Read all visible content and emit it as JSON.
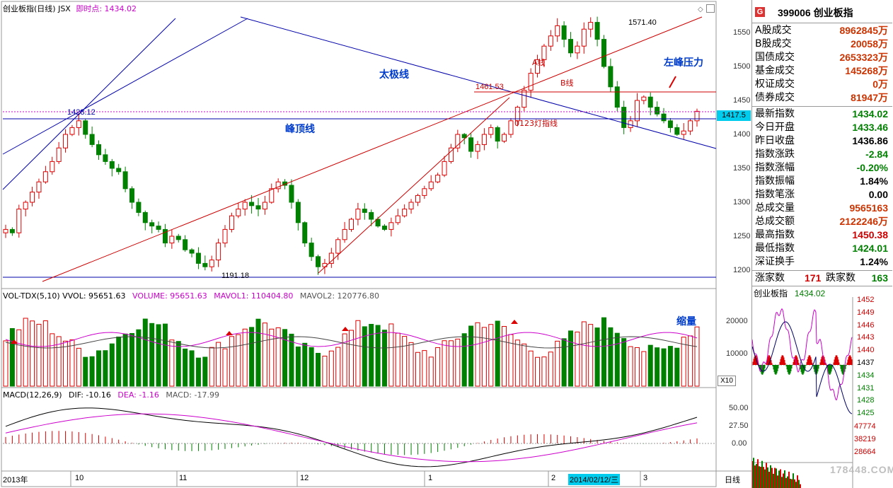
{
  "header": {
    "title": "创业板指(日线) JSX",
    "realtime_label": "即时点: 1434.02"
  },
  "colors": {
    "up": "#dd0000",
    "down": "#008000",
    "trend_blue": "#0000aa",
    "trend_red": "#cc0000",
    "magenta": "#cc00cc",
    "annot_blue": "#0033cc"
  },
  "price_chart": {
    "y_ticks": [
      "1550",
      "1500",
      "1450",
      "1400",
      "1350",
      "1300",
      "1250",
      "1200"
    ],
    "current_price_tag": "1417.5",
    "labels": {
      "high": "1571.40",
      "low": "1191.18",
      "prev_high": "1428.12",
      "cross": "1461.53",
      "a_line": "A线",
      "b_line": "B线",
      "finger": "0123灯指线"
    },
    "annotations": {
      "taiji": "太极线",
      "fengding": "峰顶线",
      "zuofeng": "左峰压力",
      "suoliang": "缩量"
    }
  },
  "volume": {
    "header": "VOL-TDX(5,10)  VVOL: 95651.63",
    "volume": "VOLUME: 95651.63",
    "mavol1": "MAVOL1: 110404.80",
    "mavol2": "MAVOL2: 120776.80",
    "y_ticks": [
      "20000",
      "10000"
    ],
    "unit": "X10"
  },
  "macd": {
    "header": "MACD(12,26,9)",
    "dif": "DIF: -10.16",
    "dea": "DEA: -1.16",
    "macd": "MACD: -17.99",
    "y_ticks": [
      "50.00",
      "27.50",
      "0.00"
    ]
  },
  "x_axis": {
    "labels": [
      "2013年",
      "10",
      "11",
      "12",
      "1",
      "2",
      "2014/02/12/三",
      "3"
    ],
    "period": "日线"
  },
  "quote": {
    "badge": "G",
    "code_name": "399006 创业板指",
    "rows1": [
      {
        "label": "A股成交",
        "value": "8962845万",
        "color": "#cc3300"
      },
      {
        "label": "B股成交",
        "value": "20058万",
        "color": "#cc3300"
      },
      {
        "label": "国债成交",
        "value": "2653323万",
        "color": "#cc3300"
      },
      {
        "label": "基金成交",
        "value": "145268万",
        "color": "#cc3300"
      },
      {
        "label": "权证成交",
        "value": "0万",
        "color": "#cc3300"
      },
      {
        "label": "债券成交",
        "value": "81947万",
        "color": "#cc3300"
      }
    ],
    "rows2": [
      {
        "label": "最新指数",
        "value": "1434.02",
        "color": "#008000"
      },
      {
        "label": "今日开盘",
        "value": "1433.46",
        "color": "#008000"
      },
      {
        "label": "昨日收盘",
        "value": "1436.86",
        "color": "#000000"
      },
      {
        "label": "指数涨跌",
        "value": "-2.84",
        "color": "#008000"
      },
      {
        "label": "指数涨幅",
        "value": "-0.20%",
        "color": "#008000"
      },
      {
        "label": "指数振幅",
        "value": "1.84%",
        "color": "#000000"
      },
      {
        "label": "指数笔涨",
        "value": "0.00",
        "color": "#000000"
      },
      {
        "label": "总成交量",
        "value": "9565163",
        "color": "#cc3300"
      },
      {
        "label": "总成交额",
        "value": "2122246万",
        "color": "#cc3300"
      },
      {
        "label": "最高指数",
        "value": "1450.38",
        "color": "#cc0000"
      },
      {
        "label": "最低指数",
        "value": "1424.01",
        "color": "#008000"
      },
      {
        "label": "深证换手",
        "value": "1.24%",
        "color": "#000000"
      }
    ],
    "breadth": {
      "up_label": "涨家数",
      "up_value": "171",
      "down_label": "跌家数",
      "down_value": "163"
    }
  },
  "mini_chart": {
    "title": "创业板指",
    "value": "1434.02",
    "ticks": [
      "1452",
      "1449",
      "1446",
      "1443",
      "1440",
      "1437",
      "1434",
      "1431",
      "1428",
      "1425"
    ],
    "vol_ticks": [
      "47774",
      "38219",
      "28664"
    ]
  },
  "watermark": "178448.COM"
}
